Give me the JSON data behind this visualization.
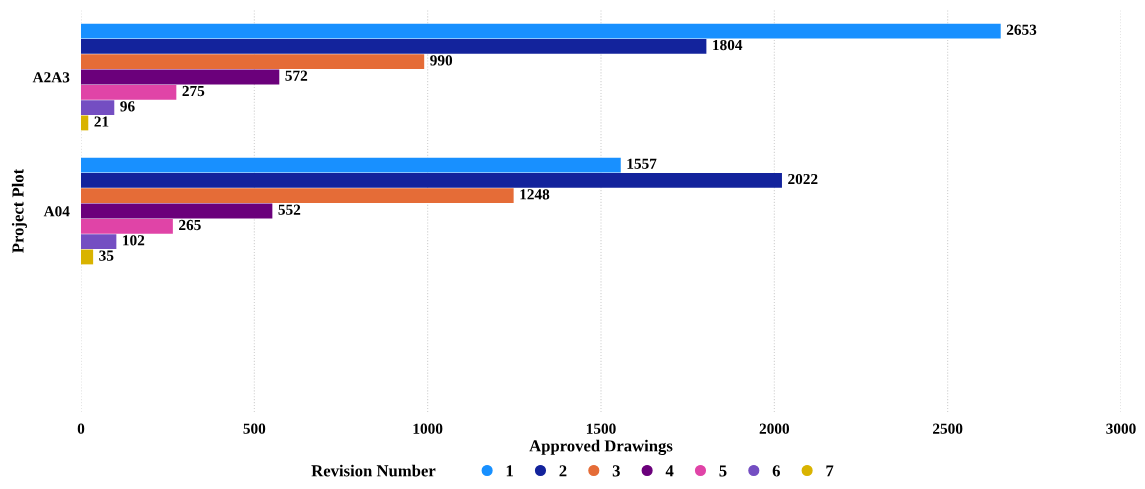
{
  "chart_data": {
    "type": "bar",
    "orientation": "horizontal",
    "xlabel": "Approved Drawings",
    "ylabel": "Project Plot",
    "legend_title": "Revision Number",
    "categories": [
      "A2A3",
      "A04",
      null
    ],
    "series": [
      {
        "name": "1",
        "color": "#1890ff",
        "values": [
          2653,
          1557,
          null
        ]
      },
      {
        "name": "2",
        "color": "#13239c",
        "values": [
          1804,
          2022,
          null
        ]
      },
      {
        "name": "3",
        "color": "#e56c37",
        "values": [
          990,
          1248,
          null
        ]
      },
      {
        "name": "4",
        "color": "#6b007b",
        "values": [
          572,
          552,
          null
        ]
      },
      {
        "name": "5",
        "color": "#e044a7",
        "values": [
          275,
          265,
          null
        ]
      },
      {
        "name": "6",
        "color": "#744ec2",
        "values": [
          96,
          102,
          null
        ]
      },
      {
        "name": "7",
        "color": "#d9b300",
        "values": [
          21,
          35,
          null
        ]
      }
    ],
    "xlim": [
      0,
      3000
    ],
    "xticks": [
      0,
      500,
      1000,
      1500,
      2000,
      2500,
      3000
    ],
    "grid": "x",
    "legend": "bottom",
    "data_labels": true
  }
}
